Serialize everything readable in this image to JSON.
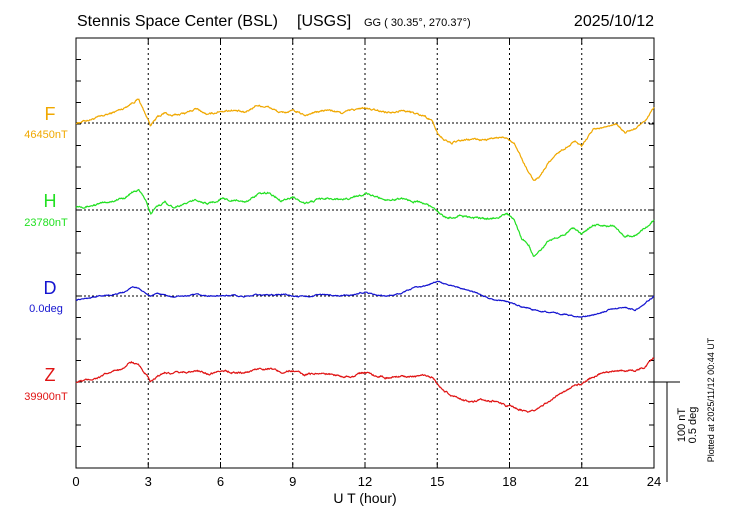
{
  "header": {
    "station": "Stennis Space Center (BSL)",
    "network": "[USGS]",
    "coords": "GG ( 30.35°, 270.37°)",
    "date": "2025/10/12"
  },
  "plotted_note": "Plotted at 2025/11/12 00:44 UT",
  "scale_bar": {
    "nt": "100 nT",
    "deg": "0.5 deg"
  },
  "chart_data": {
    "type": "line",
    "xlabel": "U T (hour)",
    "xlim": [
      0,
      24
    ],
    "xticks": [
      0,
      3,
      6,
      9,
      12,
      15,
      18,
      21,
      24
    ],
    "grid": true,
    "series": [
      {
        "name": "F",
        "baseline_label": "46450nT",
        "color": "#f0a800",
        "unit": "nT",
        "baseline": 46450,
        "scale_per_100px": 100,
        "x": [
          0,
          0.5,
          1.0,
          1.5,
          2.0,
          2.3,
          2.6,
          2.9,
          3.1,
          3.4,
          3.7,
          4.0,
          4.5,
          5.0,
          5.5,
          6.0,
          6.5,
          7.0,
          7.5,
          8.0,
          8.5,
          9.0,
          9.5,
          10.0,
          10.5,
          11.0,
          11.5,
          12.0,
          12.5,
          13.0,
          13.5,
          14.0,
          14.5,
          14.8,
          15.0,
          15.3,
          15.6,
          16.0,
          16.5,
          17.0,
          17.5,
          17.9,
          18.2,
          18.5,
          18.8,
          19.0,
          19.3,
          19.6,
          19.9,
          20.3,
          20.7,
          21.0,
          21.5,
          22.0,
          22.4,
          22.8,
          23.2,
          23.6,
          24.0
        ],
        "y": [
          46450,
          46453,
          46456,
          46460,
          46465,
          46470,
          46474,
          46458,
          46448,
          46456,
          46460,
          46457,
          46460,
          46464,
          46458,
          46462,
          46463,
          46460,
          46468,
          46466,
          46460,
          46462,
          46458,
          46461,
          46463,
          46460,
          46463,
          46465,
          46462,
          46461,
          46463,
          46460,
          46457,
          46452,
          46440,
          46433,
          46430,
          46432,
          46434,
          46433,
          46435,
          46436,
          46430,
          46415,
          46400,
          46392,
          46398,
          46410,
          46418,
          46425,
          46432,
          46428,
          46444,
          46446,
          46450,
          46440,
          46444,
          46450,
          46465
        ]
      },
      {
        "name": "H",
        "baseline_label": "23780nT",
        "color": "#22e022",
        "unit": "nT",
        "baseline": 23780,
        "scale_per_100px": 100,
        "x": [
          0,
          0.5,
          1.0,
          1.5,
          2.0,
          2.3,
          2.6,
          2.9,
          3.1,
          3.4,
          3.7,
          4.0,
          4.5,
          5.0,
          5.5,
          6.0,
          6.5,
          7.0,
          7.5,
          8.0,
          8.5,
          9.0,
          9.5,
          10.0,
          10.5,
          11.0,
          11.5,
          12.0,
          12.5,
          13.0,
          13.5,
          14.0,
          14.5,
          14.8,
          15.0,
          15.3,
          15.6,
          16.0,
          16.5,
          17.0,
          17.5,
          17.9,
          18.2,
          18.5,
          18.8,
          19.0,
          19.3,
          19.6,
          19.9,
          20.3,
          20.7,
          21.0,
          21.5,
          22.0,
          22.4,
          22.8,
          23.2,
          23.6,
          24.0
        ],
        "y": [
          23784,
          23784,
          23786,
          23789,
          23792,
          23797,
          23800,
          23790,
          23776,
          23784,
          23788,
          23783,
          23786,
          23790,
          23786,
          23791,
          23790,
          23788,
          23795,
          23797,
          23790,
          23793,
          23786,
          23790,
          23792,
          23790,
          23793,
          23796,
          23793,
          23790,
          23792,
          23789,
          23786,
          23783,
          23778,
          23773,
          23772,
          23774,
          23772,
          23771,
          23773,
          23776,
          23770,
          23752,
          23745,
          23733,
          23740,
          23748,
          23753,
          23757,
          23762,
          23756,
          23765,
          23764,
          23763,
          23753,
          23755,
          23761,
          23770
        ]
      },
      {
        "name": "D",
        "baseline_label": "0.0deg",
        "color": "#1414d0",
        "unit": "deg",
        "baseline": 0.0,
        "scale_per_100px": 0.5,
        "x": [
          0,
          0.5,
          1.0,
          1.5,
          2.0,
          2.3,
          2.6,
          2.9,
          3.1,
          3.4,
          3.7,
          4.0,
          4.5,
          5.0,
          5.5,
          6.0,
          6.5,
          7.0,
          7.5,
          8.0,
          8.5,
          9.0,
          9.5,
          10.0,
          10.5,
          11.0,
          11.5,
          12.0,
          12.5,
          13.0,
          13.5,
          14.0,
          14.5,
          14.8,
          15.0,
          15.3,
          15.6,
          16.0,
          16.5,
          17.0,
          17.5,
          17.9,
          18.2,
          18.5,
          18.8,
          19.0,
          19.3,
          19.6,
          19.9,
          20.3,
          20.7,
          21.0,
          21.5,
          22.0,
          22.4,
          22.8,
          23.2,
          23.6,
          24.0
        ],
        "y": [
          -0.02,
          -0.01,
          0.0,
          0.005,
          0.02,
          0.045,
          0.04,
          0.01,
          0.0,
          0.01,
          0.005,
          -0.005,
          0.0,
          0.005,
          0.0,
          0.0,
          0.005,
          -0.005,
          0.005,
          0.005,
          0.01,
          0.0,
          -0.005,
          0.005,
          0.005,
          0.0,
          0.005,
          0.02,
          0.005,
          0.0,
          0.01,
          0.04,
          0.05,
          0.065,
          0.075,
          0.06,
          0.055,
          0.04,
          0.02,
          -0.005,
          -0.02,
          -0.03,
          -0.04,
          -0.055,
          -0.06,
          -0.07,
          -0.075,
          -0.08,
          -0.085,
          -0.09,
          -0.1,
          -0.105,
          -0.09,
          -0.075,
          -0.06,
          -0.055,
          -0.07,
          -0.04,
          0.0
        ]
      },
      {
        "name": "Z",
        "baseline_label": "39900nT",
        "color": "#e01414",
        "unit": "nT",
        "baseline": 39900,
        "scale_per_100px": 100,
        "x": [
          0,
          0.5,
          1.0,
          1.5,
          2.0,
          2.3,
          2.6,
          2.9,
          3.1,
          3.4,
          3.7,
          4.0,
          4.5,
          5.0,
          5.5,
          6.0,
          6.5,
          7.0,
          7.5,
          8.0,
          8.5,
          9.0,
          9.5,
          10.0,
          10.5,
          11.0,
          11.5,
          12.0,
          12.5,
          13.0,
          13.5,
          14.0,
          14.5,
          14.8,
          15.0,
          15.3,
          15.6,
          16.0,
          16.5,
          17.0,
          17.5,
          17.9,
          18.2,
          18.5,
          18.8,
          19.0,
          19.3,
          19.6,
          19.9,
          20.3,
          20.7,
          21.0,
          21.5,
          22.0,
          22.4,
          22.8,
          23.2,
          23.6,
          24.0
        ],
        "y": [
          39900,
          39902,
          39905,
          39910,
          39915,
          39920,
          39916,
          39908,
          39900,
          39905,
          39910,
          39908,
          39910,
          39911,
          39908,
          39912,
          39910,
          39909,
          39913,
          39914,
          39910,
          39911,
          39907,
          39909,
          39908,
          39906,
          39906,
          39910,
          39906,
          39904,
          39906,
          39906,
          39906,
          39905,
          39898,
          39890,
          39887,
          39883,
          39880,
          39882,
          39880,
          39876,
          39875,
          39872,
          39869,
          39870,
          39875,
          39880,
          39885,
          39890,
          39896,
          39898,
          39906,
          39910,
          39912,
          39910,
          39912,
          39915,
          39925
        ]
      }
    ]
  }
}
